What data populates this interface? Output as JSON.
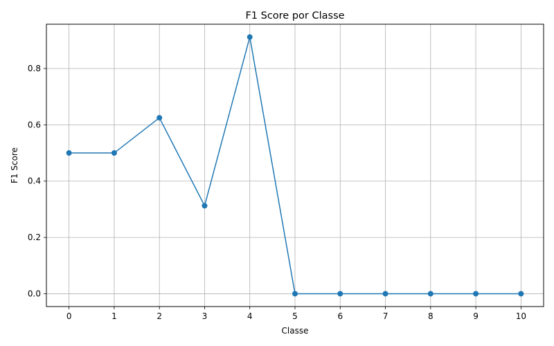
{
  "chart_data": {
    "type": "line",
    "title": "F1 Score por Classe",
    "xlabel": "Classe",
    "ylabel": "F1 Score",
    "x": [
      0,
      1,
      2,
      3,
      4,
      5,
      6,
      7,
      8,
      9,
      10
    ],
    "series": [
      {
        "values": [
          0.5,
          0.5,
          0.625,
          0.3125,
          0.9118,
          0.0,
          0.0,
          0.0,
          0.0,
          0.0,
          0.0
        ],
        "color": "#1f77b4",
        "marker": "circle"
      }
    ],
    "xlim": [
      -0.5,
      10.5
    ],
    "ylim": [
      -0.0456,
      0.9574
    ],
    "xticks": [
      "0",
      "1",
      "2",
      "3",
      "4",
      "5",
      "6",
      "7",
      "8",
      "9",
      "10"
    ],
    "yticks": [
      "0.0",
      "0.2",
      "0.4",
      "0.6",
      "0.8"
    ],
    "grid": true,
    "grid_color": "#b0b0b0",
    "legend": false
  }
}
